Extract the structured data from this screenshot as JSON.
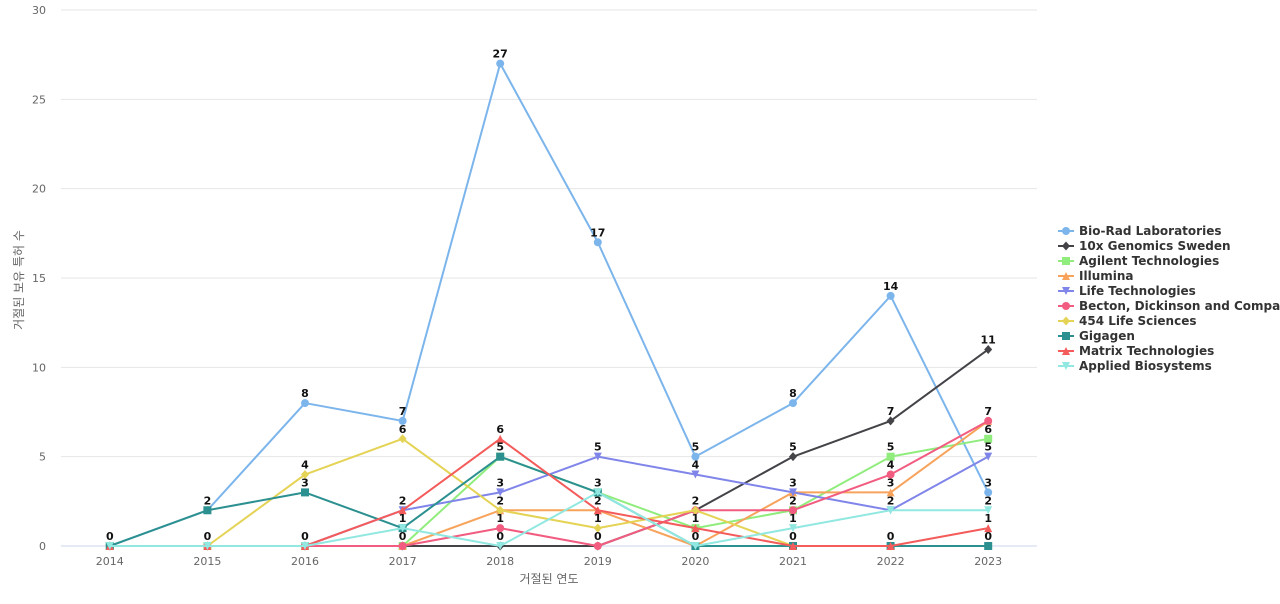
{
  "chart_data": {
    "type": "line",
    "title": "",
    "xlabel": "거절된 연도",
    "ylabel": "거절된 보유 특허 수",
    "x": [
      "2014",
      "2015",
      "2016",
      "2017",
      "2018",
      "2019",
      "2020",
      "2021",
      "2022",
      "2023"
    ],
    "yticks": [
      "0",
      "5",
      "10",
      "15",
      "20",
      "25",
      "30"
    ],
    "ylim": [
      0,
      30
    ],
    "grid": true,
    "legend_position": "right",
    "series": [
      {
        "name": "Bio-Rad Laboratories",
        "color": "#7cb5ec",
        "marker": "circle",
        "values": [
          0,
          2,
          8,
          7,
          27,
          17,
          5,
          8,
          14,
          3
        ]
      },
      {
        "name": "10x Genomics Sweden",
        "color": "#434348",
        "marker": "diamond",
        "values": [
          0,
          0,
          0,
          0,
          0,
          0,
          2,
          5,
          7,
          11
        ]
      },
      {
        "name": "Agilent Technologies",
        "color": "#90ed7d",
        "marker": "square",
        "values": [
          0,
          0,
          0,
          0,
          5,
          3,
          1,
          2,
          5,
          6
        ]
      },
      {
        "name": "Illumina",
        "color": "#f7a35c",
        "marker": "triangle",
        "values": [
          0,
          0,
          0,
          0,
          2,
          2,
          0,
          3,
          3,
          7
        ]
      },
      {
        "name": "Life Technologies",
        "color": "#8085e9",
        "marker": "triangle-down",
        "values": [
          0,
          0,
          0,
          2,
          3,
          5,
          4,
          3,
          2,
          5
        ]
      },
      {
        "name": "Becton, Dickinson and Compa...",
        "color": "#f15c80",
        "marker": "circle",
        "values": [
          0,
          0,
          0,
          0,
          1,
          0,
          2,
          2,
          4,
          7
        ]
      },
      {
        "name": "454 Life Sciences",
        "color": "#e4d354",
        "marker": "diamond",
        "values": [
          0,
          0,
          4,
          6,
          2,
          1,
          2,
          0,
          0,
          0
        ]
      },
      {
        "name": "Gigagen",
        "color": "#2b908f",
        "marker": "square",
        "values": [
          0,
          2,
          3,
          1,
          5,
          3,
          0,
          0,
          0,
          0
        ]
      },
      {
        "name": "Matrix Technologies",
        "color": "#f45b5b",
        "marker": "triangle",
        "values": [
          0,
          0,
          0,
          2,
          6,
          2,
          1,
          0,
          0,
          1
        ]
      },
      {
        "name": "Applied Biosystems",
        "color": "#91e8e1",
        "marker": "triangle-down",
        "values": [
          0,
          0,
          0,
          1,
          0,
          3,
          0,
          1,
          2,
          2
        ]
      }
    ],
    "data_labels": [
      {
        "x": "2014",
        "value": 0,
        "text": "0"
      },
      {
        "x": "2015",
        "value": 2,
        "text": "2"
      },
      {
        "x": "2015",
        "value": 0,
        "text": "0"
      },
      {
        "x": "2016",
        "value": 8,
        "text": "8"
      },
      {
        "x": "2016",
        "value": 4,
        "text": "4"
      },
      {
        "x": "2016",
        "value": 3,
        "text": "3"
      },
      {
        "x": "2016",
        "value": 0,
        "text": "0"
      },
      {
        "x": "2017",
        "value": 7,
        "text": "7"
      },
      {
        "x": "2017",
        "value": 6,
        "text": "6"
      },
      {
        "x": "2017",
        "value": 2,
        "text": "2"
      },
      {
        "x": "2017",
        "value": 1,
        "text": "1"
      },
      {
        "x": "2017",
        "value": 0,
        "text": "0"
      },
      {
        "x": "2018",
        "value": 27,
        "text": "27"
      },
      {
        "x": "2018",
        "value": 6,
        "text": "6"
      },
      {
        "x": "2018",
        "value": 5,
        "text": "5"
      },
      {
        "x": "2018",
        "value": 3,
        "text": "3"
      },
      {
        "x": "2018",
        "value": 2,
        "text": "2"
      },
      {
        "x": "2018",
        "value": 1,
        "text": "1"
      },
      {
        "x": "2018",
        "value": 0,
        "text": "0"
      },
      {
        "x": "2019",
        "value": 17,
        "text": "17"
      },
      {
        "x": "2019",
        "value": 5,
        "text": "5"
      },
      {
        "x": "2019",
        "value": 3,
        "text": "3"
      },
      {
        "x": "2019",
        "value": 2,
        "text": "2"
      },
      {
        "x": "2019",
        "value": 1,
        "text": "1"
      },
      {
        "x": "2019",
        "value": 0,
        "text": "0"
      },
      {
        "x": "2020",
        "value": 5,
        "text": "5"
      },
      {
        "x": "2020",
        "value": 4,
        "text": "4"
      },
      {
        "x": "2020",
        "value": 2,
        "text": "2"
      },
      {
        "x": "2020",
        "value": 1,
        "text": "1"
      },
      {
        "x": "2020",
        "value": 0,
        "text": "0"
      },
      {
        "x": "2021",
        "value": 8,
        "text": "8"
      },
      {
        "x": "2021",
        "value": 5,
        "text": "5"
      },
      {
        "x": "2021",
        "value": 3,
        "text": "3"
      },
      {
        "x": "2021",
        "value": 2,
        "text": "2"
      },
      {
        "x": "2021",
        "value": 1,
        "text": "1"
      },
      {
        "x": "2021",
        "value": 0,
        "text": "0"
      },
      {
        "x": "2022",
        "value": 14,
        "text": "14"
      },
      {
        "x": "2022",
        "value": 7,
        "text": "7"
      },
      {
        "x": "2022",
        "value": 5,
        "text": "5"
      },
      {
        "x": "2022",
        "value": 4,
        "text": "4"
      },
      {
        "x": "2022",
        "value": 3,
        "text": "3"
      },
      {
        "x": "2022",
        "value": 2,
        "text": "2"
      },
      {
        "x": "2022",
        "value": 0,
        "text": "0"
      },
      {
        "x": "2023",
        "value": 11,
        "text": "11"
      },
      {
        "x": "2023",
        "value": 7,
        "text": "7"
      },
      {
        "x": "2023",
        "value": 6,
        "text": "6"
      },
      {
        "x": "2023",
        "value": 5,
        "text": "5"
      },
      {
        "x": "2023",
        "value": 3,
        "text": "3"
      },
      {
        "x": "2023",
        "value": 2,
        "text": "2"
      },
      {
        "x": "2023",
        "value": 1,
        "text": "1"
      },
      {
        "x": "2023",
        "value": 0,
        "text": "0"
      }
    ]
  }
}
